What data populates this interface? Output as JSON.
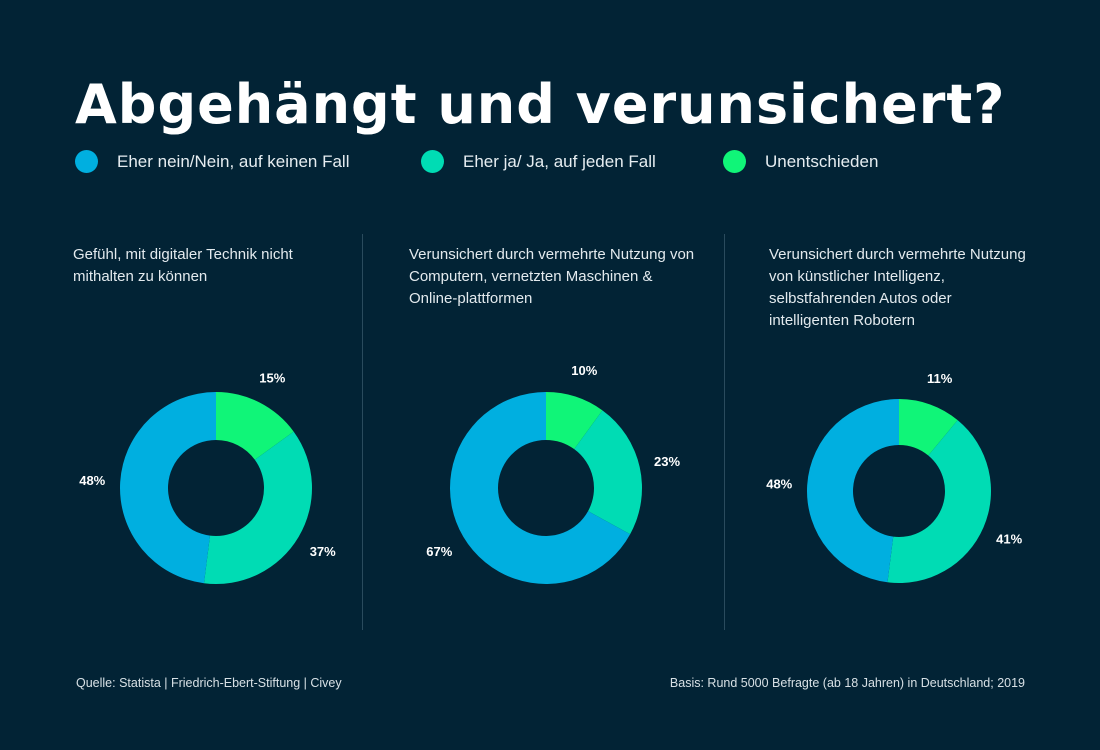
{
  "title": "Abgehängt und verunsichert?",
  "legend": [
    {
      "label": "Eher nein/Nein, auf keinen Fall",
      "color": "#00afe0"
    },
    {
      "label": "Eher ja/ Ja, auf jeden Fall",
      "color": "#00dcb4"
    },
    {
      "label": "Unentschieden",
      "color": "#10f578"
    }
  ],
  "chart_data": [
    {
      "type": "pie",
      "title": "Gefühl, mit digitaler Technik nicht mithalten zu können",
      "categories": [
        "Unentschieden",
        "Eher ja/ Ja, auf jeden Fall",
        "Eher nein/Nein, auf keinen Fall"
      ],
      "values": [
        15,
        37,
        48
      ],
      "labels": [
        "15%",
        "37%",
        "48%"
      ]
    },
    {
      "type": "pie",
      "title": "Verunsichert durch vermehrte Nutzung von Computern, vernetzten Maschinen & Online-plattformen",
      "categories": [
        "Unentschieden",
        "Eher ja/ Ja, auf jeden Fall",
        "Eher nein/Nein, auf keinen Fall"
      ],
      "values": [
        10,
        23,
        67
      ],
      "labels": [
        "10%",
        "23%",
        "67%"
      ]
    },
    {
      "type": "pie",
      "title": "Verunsichert durch vermehrte Nutzung von künstlicher Intelligenz, selbstfahrenden Autos oder intelligenten Robotern",
      "categories": [
        "Unentschieden",
        "Eher ja/ Ja, auf jeden Fall",
        "Eher nein/Nein, auf keinen Fall"
      ],
      "values": [
        11,
        41,
        48
      ],
      "labels": [
        "11%",
        "41%",
        "48%"
      ]
    }
  ],
  "footer": {
    "source": "Quelle: Statista | Friedrich-Ebert-Stiftung | Civey",
    "basis": "Basis: Rund 5000 Befragte (ab 18 Jahren) in Deutschland; 2019"
  }
}
